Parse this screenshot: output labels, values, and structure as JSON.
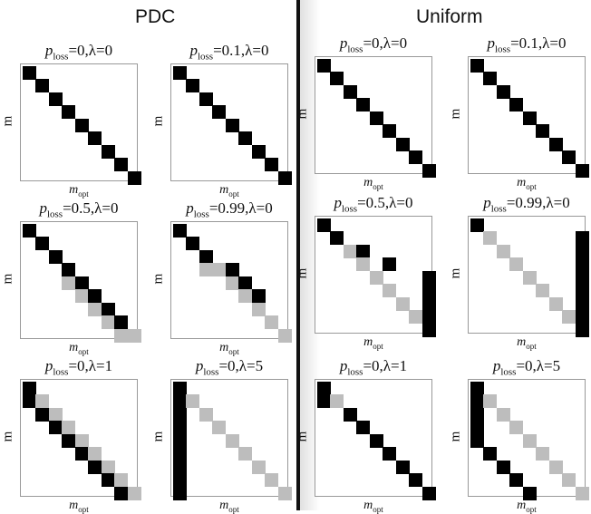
{
  "titles": {
    "left": "PDC",
    "right": "Uniform"
  },
  "axes": {
    "ylabel": "m",
    "xlabel_main": "m",
    "xlabel_sub": "opt"
  },
  "colors": {
    "black": "#000000",
    "gray": "#bdbdbd"
  },
  "panels": [
    {
      "id": "pdc-ploss0-l0",
      "title_sym": "p",
      "title_sub": "loss",
      "title_rest": "=0,λ=0",
      "cells": [
        [
          0,
          0,
          "b"
        ],
        [
          1,
          1,
          "b"
        ],
        [
          2,
          2,
          "b"
        ],
        [
          3,
          3,
          "b"
        ],
        [
          4,
          4,
          "b"
        ],
        [
          5,
          5,
          "b"
        ],
        [
          6,
          6,
          "b"
        ],
        [
          7,
          7,
          "b"
        ],
        [
          8,
          8,
          "b"
        ]
      ]
    },
    {
      "id": "pdc-ploss01-l0",
      "title_sym": "p",
      "title_sub": "loss",
      "title_rest": "=0.1,λ=0",
      "cells": [
        [
          0,
          0,
          "b"
        ],
        [
          1,
          1,
          "b"
        ],
        [
          2,
          2,
          "b"
        ],
        [
          3,
          3,
          "b"
        ],
        [
          4,
          4,
          "b"
        ],
        [
          5,
          5,
          "b"
        ],
        [
          6,
          6,
          "b"
        ],
        [
          7,
          7,
          "b"
        ],
        [
          8,
          8,
          "b"
        ]
      ]
    },
    {
      "id": "uni-ploss0-l0",
      "title_sym": "p",
      "title_sub": "loss",
      "title_rest": "=0,λ=0",
      "cells": [
        [
          0,
          0,
          "b"
        ],
        [
          1,
          1,
          "b"
        ],
        [
          2,
          2,
          "b"
        ],
        [
          3,
          3,
          "b"
        ],
        [
          4,
          4,
          "b"
        ],
        [
          5,
          5,
          "b"
        ],
        [
          6,
          6,
          "b"
        ],
        [
          7,
          7,
          "b"
        ],
        [
          8,
          8,
          "b"
        ]
      ]
    },
    {
      "id": "uni-ploss01-l0",
      "title_sym": "p",
      "title_sub": "loss",
      "title_rest": "=0.1,λ=0",
      "cells": [
        [
          0,
          0,
          "b"
        ],
        [
          1,
          1,
          "b"
        ],
        [
          2,
          2,
          "b"
        ],
        [
          3,
          3,
          "b"
        ],
        [
          4,
          4,
          "b"
        ],
        [
          5,
          5,
          "b"
        ],
        [
          6,
          6,
          "b"
        ],
        [
          7,
          7,
          "b"
        ],
        [
          8,
          8,
          "b"
        ]
      ]
    },
    {
      "id": "pdc-ploss05-l0",
      "title_sym": "p",
      "title_sub": "loss",
      "title_rest": "=0.5,λ=0",
      "cells": [
        [
          0,
          0,
          "b"
        ],
        [
          1,
          1,
          "b"
        ],
        [
          2,
          2,
          "b"
        ],
        [
          3,
          3,
          "b"
        ],
        [
          4,
          3,
          "g"
        ],
        [
          4,
          4,
          "b"
        ],
        [
          5,
          4,
          "g"
        ],
        [
          5,
          5,
          "b"
        ],
        [
          6,
          5,
          "g"
        ],
        [
          6,
          6,
          "b"
        ],
        [
          7,
          6,
          "g"
        ],
        [
          7,
          7,
          "b"
        ],
        [
          8,
          7,
          "g"
        ],
        [
          8,
          8,
          "g"
        ]
      ]
    },
    {
      "id": "pdc-ploss099-l0",
      "title_sym": "p",
      "title_sub": "loss",
      "title_rest": "=0.99,λ=0",
      "cells": [
        [
          0,
          0,
          "b"
        ],
        [
          1,
          1,
          "b"
        ],
        [
          2,
          2,
          "g"
        ],
        [
          2,
          2,
          "b"
        ],
        [
          3,
          2,
          "g"
        ],
        [
          3,
          3,
          "g"
        ],
        [
          3,
          4,
          "b"
        ],
        [
          4,
          4,
          "g"
        ],
        [
          4,
          5,
          "b"
        ],
        [
          5,
          5,
          "g"
        ],
        [
          5,
          6,
          "b"
        ],
        [
          6,
          6,
          "g"
        ],
        [
          7,
          7,
          "g"
        ],
        [
          8,
          8,
          "g"
        ]
      ]
    },
    {
      "id": "uni-ploss05-l0",
      "title_sym": "p",
      "title_sub": "loss",
      "title_rest": "=0.5,λ=0",
      "cells": [
        [
          0,
          0,
          "b"
        ],
        [
          1,
          1,
          "b"
        ],
        [
          2,
          2,
          "g"
        ],
        [
          2,
          3,
          "b"
        ],
        [
          3,
          3,
          "g"
        ],
        [
          3,
          5,
          "b"
        ],
        [
          4,
          4,
          "g"
        ],
        [
          5,
          5,
          "g"
        ],
        [
          6,
          6,
          "g"
        ],
        [
          7,
          7,
          "g"
        ],
        [
          4,
          8,
          "b"
        ],
        [
          5,
          8,
          "b"
        ],
        [
          6,
          8,
          "b"
        ],
        [
          7,
          8,
          "b"
        ],
        [
          8,
          8,
          "b"
        ]
      ]
    },
    {
      "id": "uni-ploss099-l0",
      "title_sym": "p",
      "title_sub": "loss",
      "title_rest": "=0.99,λ=0",
      "cells": [
        [
          0,
          0,
          "b"
        ],
        [
          1,
          1,
          "g"
        ],
        [
          2,
          2,
          "g"
        ],
        [
          3,
          3,
          "g"
        ],
        [
          4,
          4,
          "g"
        ],
        [
          5,
          5,
          "g"
        ],
        [
          6,
          6,
          "g"
        ],
        [
          7,
          7,
          "g"
        ],
        [
          1,
          8,
          "b"
        ],
        [
          2,
          8,
          "b"
        ],
        [
          3,
          8,
          "b"
        ],
        [
          4,
          8,
          "b"
        ],
        [
          5,
          8,
          "b"
        ],
        [
          6,
          8,
          "b"
        ],
        [
          7,
          8,
          "b"
        ],
        [
          8,
          8,
          "b"
        ]
      ]
    },
    {
      "id": "pdc-ploss0-l1",
      "title_sym": "p",
      "title_sub": "loss",
      "title_rest": "=0,λ=1",
      "cells": [
        [
          0,
          0,
          "b"
        ],
        [
          1,
          0,
          "b"
        ],
        [
          1,
          1,
          "g"
        ],
        [
          2,
          1,
          "b"
        ],
        [
          2,
          2,
          "g"
        ],
        [
          3,
          2,
          "b"
        ],
        [
          3,
          3,
          "g"
        ],
        [
          4,
          3,
          "b"
        ],
        [
          4,
          4,
          "g"
        ],
        [
          5,
          4,
          "b"
        ],
        [
          5,
          5,
          "g"
        ],
        [
          6,
          5,
          "b"
        ],
        [
          6,
          6,
          "g"
        ],
        [
          7,
          6,
          "b"
        ],
        [
          7,
          7,
          "g"
        ],
        [
          8,
          7,
          "b"
        ],
        [
          8,
          8,
          "g"
        ]
      ]
    },
    {
      "id": "pdc-ploss0-l5",
      "title_sym": "p",
      "title_sub": "loss",
      "title_rest": "=0,λ=5",
      "cells": [
        [
          0,
          0,
          "b"
        ],
        [
          1,
          0,
          "b"
        ],
        [
          2,
          0,
          "b"
        ],
        [
          3,
          0,
          "b"
        ],
        [
          4,
          0,
          "b"
        ],
        [
          5,
          0,
          "b"
        ],
        [
          6,
          0,
          "b"
        ],
        [
          7,
          0,
          "b"
        ],
        [
          8,
          0,
          "b"
        ],
        [
          1,
          1,
          "g"
        ],
        [
          2,
          2,
          "g"
        ],
        [
          3,
          3,
          "g"
        ],
        [
          4,
          4,
          "g"
        ],
        [
          5,
          5,
          "g"
        ],
        [
          6,
          6,
          "g"
        ],
        [
          7,
          7,
          "g"
        ],
        [
          8,
          8,
          "g"
        ]
      ]
    },
    {
      "id": "uni-ploss0-l1",
      "title_sym": "p",
      "title_sub": "loss",
      "title_rest": "=0,λ=1",
      "cells": [
        [
          0,
          0,
          "b"
        ],
        [
          1,
          0,
          "b"
        ],
        [
          1,
          1,
          "g"
        ],
        [
          2,
          2,
          "b"
        ],
        [
          3,
          3,
          "b"
        ],
        [
          4,
          4,
          "b"
        ],
        [
          5,
          5,
          "b"
        ],
        [
          6,
          6,
          "b"
        ],
        [
          7,
          7,
          "b"
        ],
        [
          8,
          8,
          "b"
        ]
      ]
    },
    {
      "id": "uni-ploss0-l5",
      "title_sym": "p",
      "title_sub": "loss",
      "title_rest": "=0,λ=5",
      "cells": [
        [
          0,
          0,
          "b"
        ],
        [
          1,
          0,
          "b"
        ],
        [
          2,
          0,
          "b"
        ],
        [
          3,
          0,
          "b"
        ],
        [
          4,
          0,
          "b"
        ],
        [
          1,
          1,
          "g"
        ],
        [
          2,
          2,
          "g"
        ],
        [
          3,
          3,
          "g"
        ],
        [
          4,
          4,
          "g"
        ],
        [
          5,
          5,
          "g"
        ],
        [
          6,
          6,
          "g"
        ],
        [
          7,
          7,
          "g"
        ],
        [
          8,
          8,
          "g"
        ],
        [
          5,
          1,
          "b"
        ],
        [
          6,
          2,
          "b"
        ],
        [
          7,
          3,
          "b"
        ],
        [
          8,
          4,
          "b"
        ]
      ]
    }
  ]
}
